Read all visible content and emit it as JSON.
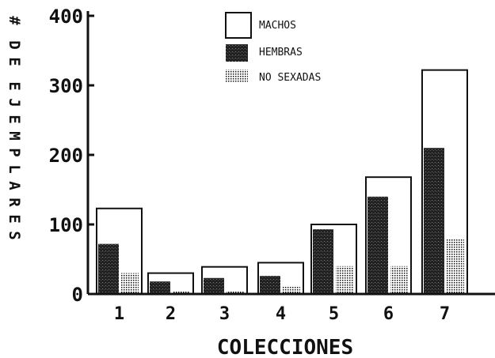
{
  "chart_data": {
    "type": "bar",
    "categories": [
      "1",
      "2",
      "3",
      "4",
      "5",
      "6",
      "7"
    ],
    "series": [
      {
        "name": "MACHOS",
        "values": [
          123,
          30,
          39,
          45,
          100,
          168,
          322
        ]
      },
      {
        "name": "HEMBRAS",
        "values": [
          72,
          18,
          23,
          26,
          93,
          140,
          210
        ]
      },
      {
        "name": "NO SEXADAS",
        "values": [
          30,
          5,
          5,
          12,
          40,
          40,
          80
        ]
      }
    ],
    "title": "",
    "xlabel": "COLECCIONES",
    "ylabel": "# DE EJEMPLARES",
    "ylim": [
      0,
      400
    ],
    "yticks": [
      "0",
      "100",
      "200",
      "300",
      "400"
    ],
    "grid": false,
    "legend": "top-center"
  },
  "colors": {
    "machos": "#ffffff",
    "hembras": "#2a2a2a",
    "no_sexadas": "#e8e8e8",
    "ink": "#111111"
  }
}
